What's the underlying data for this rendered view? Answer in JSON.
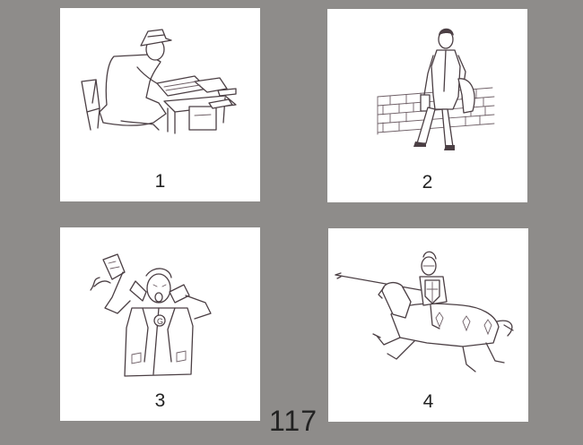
{
  "cards": [
    {
      "number": "1",
      "icon": "typist-icon"
    },
    {
      "number": "2",
      "icon": "walking-man-icon"
    },
    {
      "number": "3",
      "icon": "startled-man-icon"
    },
    {
      "number": "4",
      "icon": "knight-jousting-icon"
    }
  ],
  "page_number": "117",
  "colors": {
    "background": "#8e8c8a",
    "card": "#ffffff",
    "ink": "#4b3f44"
  }
}
